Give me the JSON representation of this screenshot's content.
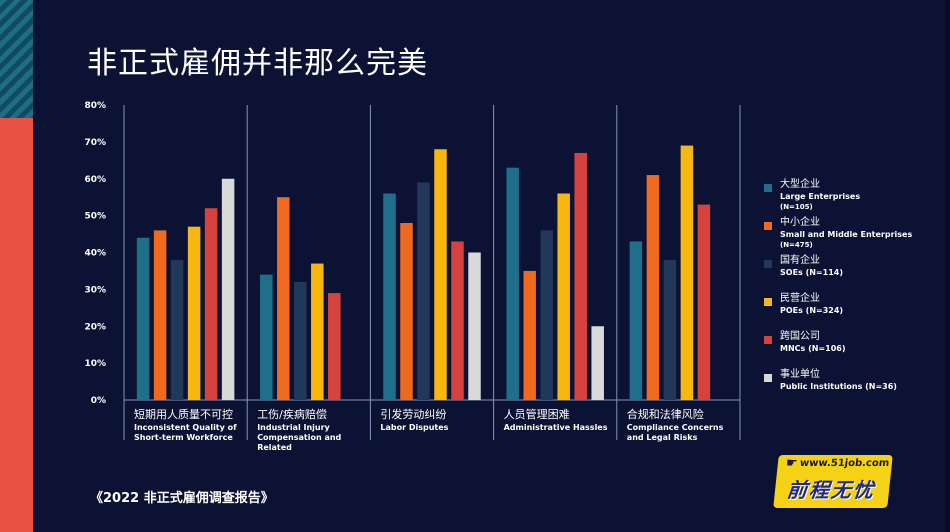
{
  "slide": {
    "title": "非正式雇佣并非那么完美",
    "source": "《2022 非正式雇佣调查报告》"
  },
  "logo": {
    "url": "www.51job.com",
    "text": "前程无忧"
  },
  "chart_data": {
    "type": "bar",
    "ylim": [
      0,
      80
    ],
    "yticks": [
      "0%",
      "10%",
      "20%",
      "30%",
      "40%",
      "50%",
      "60%",
      "70%",
      "80%"
    ],
    "grid": "vertical separators",
    "legend_position": "right",
    "categories": [
      {
        "zh": "短期用人质量不可控",
        "en": [
          "Inconsistent Quality of",
          "Short-term Workforce"
        ]
      },
      {
        "zh": "工伤/疾病赔偿",
        "en": [
          "Industrial Injury",
          "Compensation and",
          "Related"
        ]
      },
      {
        "zh": "引发劳动纠纷",
        "en": [
          "Labor Disputes"
        ]
      },
      {
        "zh": "人员管理困难",
        "en": [
          "Administrative Hassles"
        ]
      },
      {
        "zh": "合规和法律风险",
        "en": [
          "Compliance Concerns",
          "and Legal Risks"
        ]
      }
    ],
    "series": [
      {
        "zh": "大型企业",
        "en": "Large Enterprises",
        "n": "(N=105)",
        "color": "#1f6f8b",
        "values": [
          44,
          34,
          56,
          63,
          43
        ]
      },
      {
        "zh": "中小企业",
        "en": "Small and Middle Enterprises",
        "n": "(N=475)",
        "color": "#ef6a1f",
        "values": [
          46,
          55,
          48,
          35,
          61
        ]
      },
      {
        "zh": "国有企业",
        "en": "SOEs (N=114)",
        "n": "",
        "color": "#22385a",
        "values": [
          38,
          32,
          59,
          46,
          38
        ]
      },
      {
        "zh": "民营企业",
        "en": "POEs (N=324)",
        "n": "",
        "color": "#f7b70f",
        "values": [
          47,
          37,
          68,
          56,
          69
        ]
      },
      {
        "zh": "跨国公司",
        "en": "MNCs (N=106)",
        "n": "",
        "color": "#d6423e",
        "values": [
          52,
          29,
          43,
          67,
          53
        ]
      },
      {
        "zh": "事业单位",
        "en": "Public Institutions (N=36)",
        "n": "",
        "color": "#d9d9d9",
        "values": [
          60,
          null,
          40,
          20,
          null
        ]
      }
    ]
  }
}
